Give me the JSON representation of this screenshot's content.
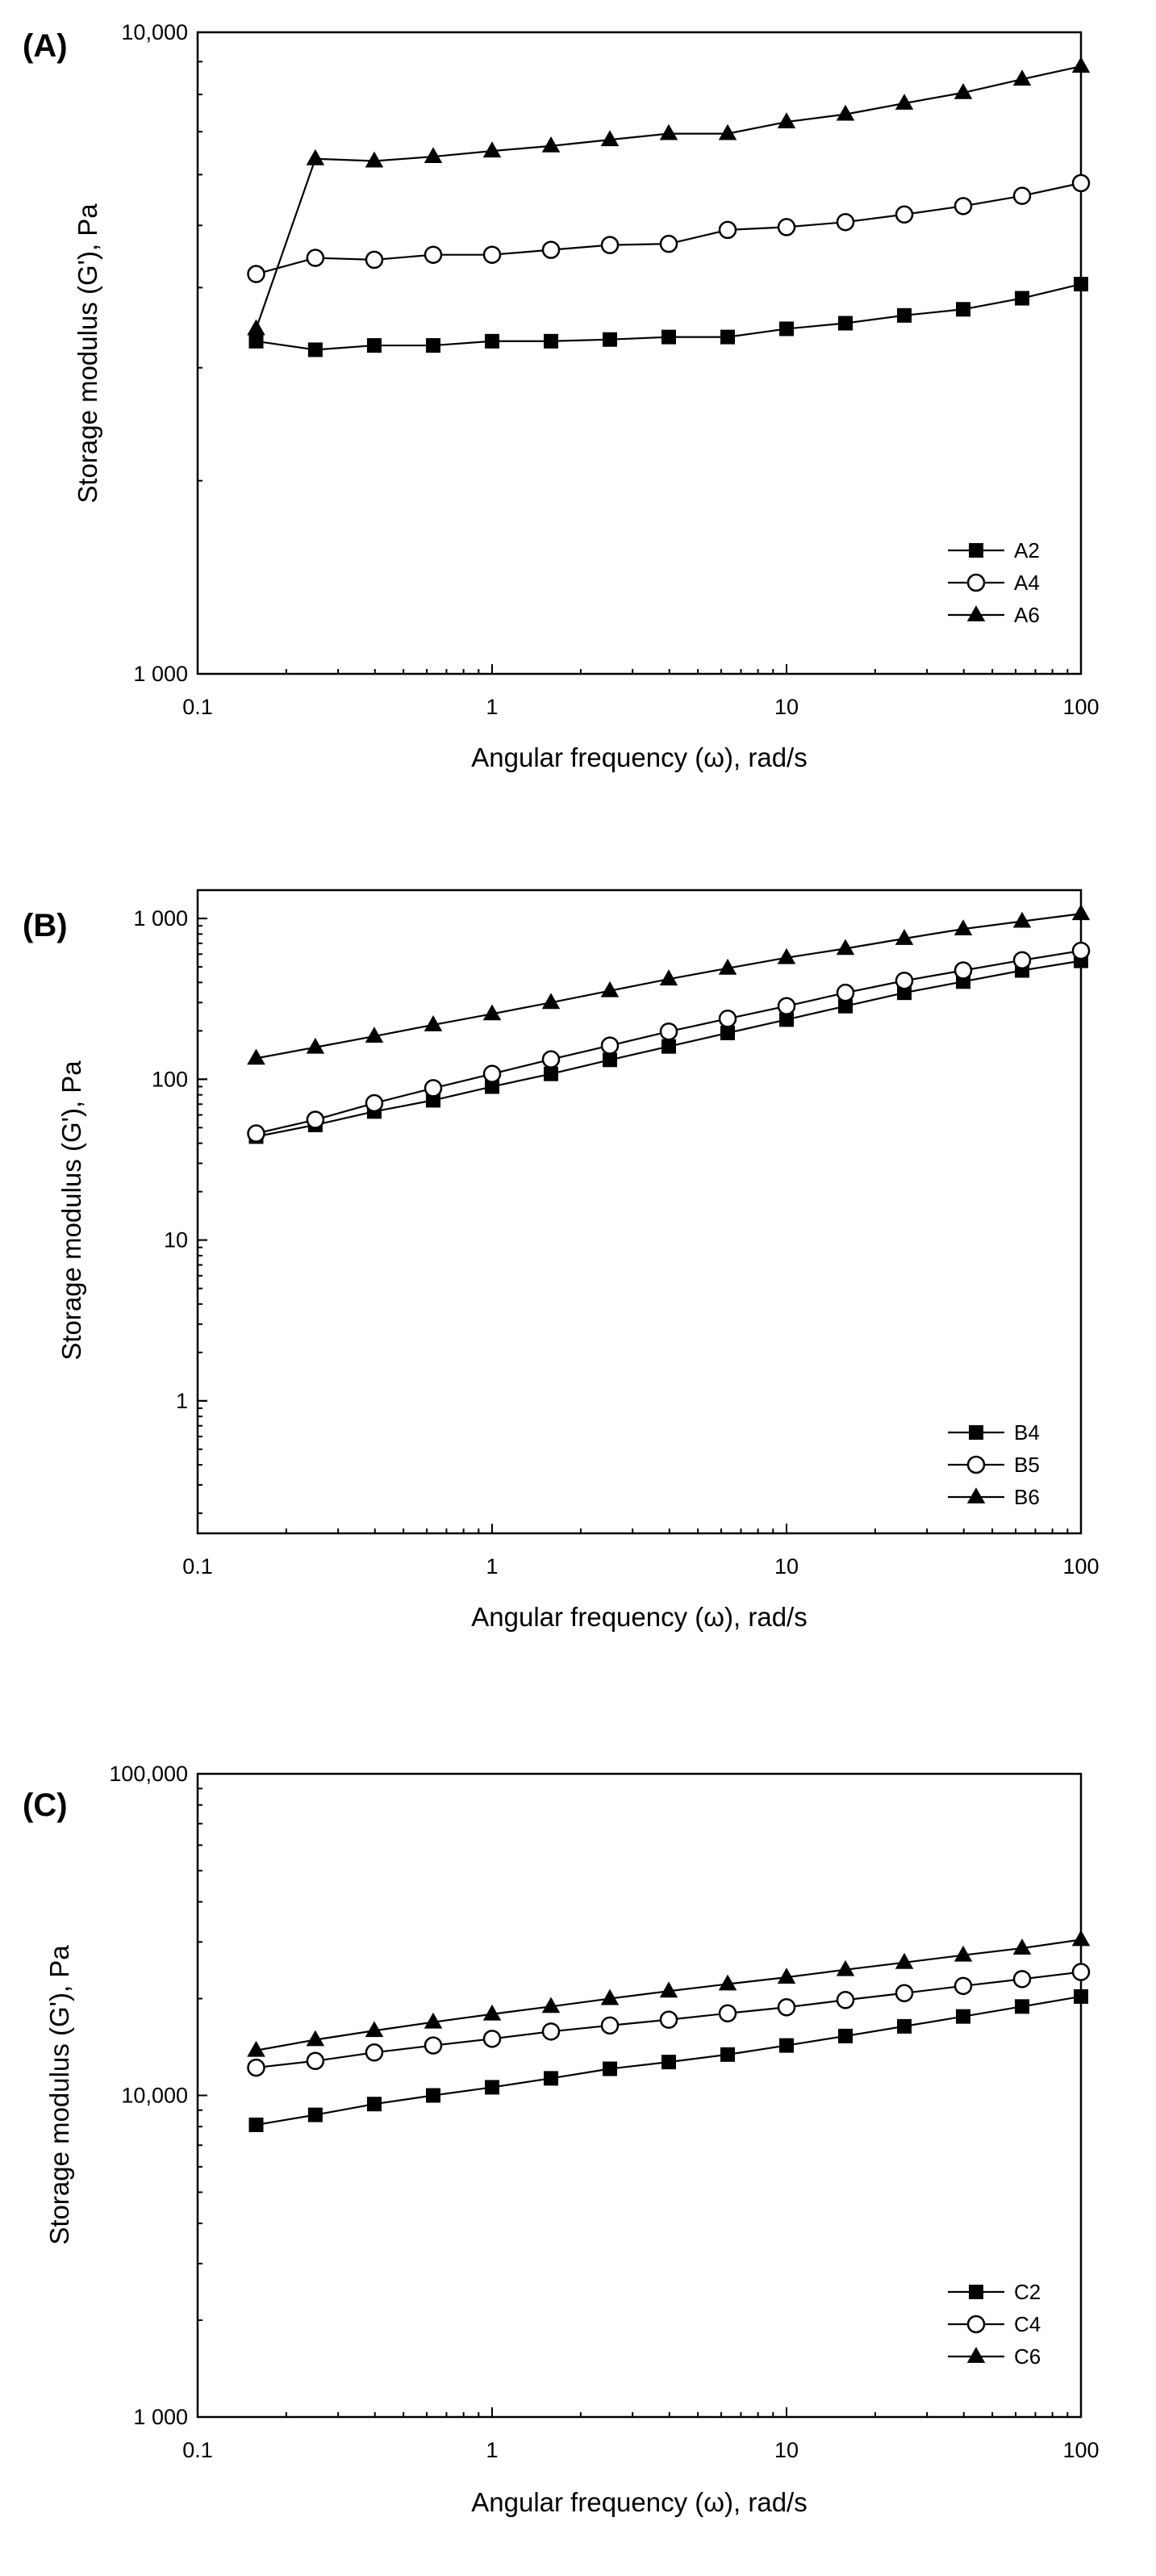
{
  "chart_data": [
    {
      "type": "line",
      "panel_label": "(A)",
      "xscale": "log",
      "yscale": "log",
      "xlim": [
        0.1,
        100
      ],
      "ylim": [
        1000,
        10000
      ],
      "xlabel": "Angular frequency (ω), rad/s",
      "ylabel": "Storage modulus (G'), Pa",
      "xticks": [
        0.1,
        1,
        10,
        100
      ],
      "xtick_labels": [
        "0.1",
        "1",
        "10",
        "100"
      ],
      "yticks": [
        1000,
        10000
      ],
      "ytick_labels": [
        "1 000",
        "10,000"
      ],
      "legend_position": "bottom-right",
      "x": [
        0.158,
        0.251,
        0.398,
        0.631,
        1.0,
        1.585,
        2.512,
        3.981,
        6.31,
        10.0,
        15.85,
        25.12,
        39.81,
        63.1,
        100.0
      ],
      "series": [
        {
          "name": "A2",
          "marker": "square-filled",
          "values": [
            3300,
            3200,
            3250,
            3250,
            3300,
            3300,
            3320,
            3350,
            3350,
            3450,
            3520,
            3620,
            3700,
            3850,
            4050
          ]
        },
        {
          "name": "A4",
          "marker": "circle-open",
          "values": [
            4200,
            4450,
            4420,
            4500,
            4500,
            4580,
            4660,
            4680,
            4920,
            4970,
            5060,
            5200,
            5360,
            5560,
            5820
          ]
        },
        {
          "name": "A6",
          "marker": "triangle-filled",
          "values": [
            3450,
            6350,
            6300,
            6400,
            6530,
            6650,
            6800,
            6950,
            6950,
            7250,
            7450,
            7750,
            8050,
            8450,
            8850
          ]
        }
      ]
    },
    {
      "type": "line",
      "panel_label": "(B)",
      "xscale": "log",
      "yscale": "log",
      "xlim": [
        0.1,
        100
      ],
      "ylim": [
        0.15,
        1500
      ],
      "xlabel": "Angular frequency (ω), rad/s",
      "ylabel": "Storage modulus (G'), Pa",
      "xticks": [
        0.1,
        1,
        10,
        100
      ],
      "xtick_labels": [
        "0.1",
        "1",
        "10",
        "100"
      ],
      "yticks": [
        1,
        10,
        100,
        1000
      ],
      "ytick_labels": [
        "1",
        "10",
        "100",
        "1 000"
      ],
      "legend_position": "bottom-right",
      "x": [
        0.158,
        0.251,
        0.398,
        0.631,
        1.0,
        1.585,
        2.512,
        3.981,
        6.31,
        10.0,
        15.85,
        25.12,
        39.81,
        63.1,
        100.0
      ],
      "series": [
        {
          "name": "B4",
          "marker": "square-filled",
          "values": [
            44,
            52,
            63,
            74,
            90,
            108,
            132,
            160,
            194,
            235,
            285,
            345,
            405,
            475,
            545
          ]
        },
        {
          "name": "B5",
          "marker": "circle-open",
          "values": [
            46,
            56,
            71,
            88,
            108,
            133,
            162,
            198,
            238,
            285,
            345,
            410,
            475,
            550,
            630
          ]
        },
        {
          "name": "B6",
          "marker": "triangle-filled",
          "values": [
            135,
            158,
            185,
            218,
            255,
            300,
            355,
            420,
            490,
            570,
            650,
            750,
            860,
            960,
            1070
          ]
        }
      ]
    },
    {
      "type": "line",
      "panel_label": "(C)",
      "xscale": "log",
      "yscale": "log",
      "xlim": [
        0.1,
        100
      ],
      "ylim": [
        1000,
        100000
      ],
      "xlabel": "Angular frequency (ω), rad/s",
      "ylabel": "Storage modulus (G'), Pa",
      "xticks": [
        0.1,
        1,
        10,
        100
      ],
      "xtick_labels": [
        "0.1",
        "1",
        "10",
        "100"
      ],
      "yticks": [
        1000,
        10000,
        100000
      ],
      "ytick_labels": [
        "1 000",
        "10,000",
        "100,000"
      ],
      "legend_position": "bottom-right",
      "x": [
        0.158,
        0.251,
        0.398,
        0.631,
        1.0,
        1.585,
        2.512,
        3.981,
        6.31,
        10.0,
        15.85,
        25.12,
        39.81,
        63.1,
        100.0
      ],
      "series": [
        {
          "name": "C2",
          "marker": "square-filled",
          "values": [
            8100,
            8700,
            9400,
            10000,
            10600,
            11300,
            12100,
            12700,
            13400,
            14300,
            15300,
            16400,
            17600,
            18900,
            20300
          ]
        },
        {
          "name": "C4",
          "marker": "circle-open",
          "values": [
            12200,
            12800,
            13600,
            14300,
            15000,
            15800,
            16500,
            17200,
            18000,
            18800,
            19800,
            20800,
            21900,
            23000,
            24200
          ]
        },
        {
          "name": "C6",
          "marker": "triangle-filled",
          "values": [
            13800,
            14900,
            15900,
            16900,
            17900,
            18900,
            20000,
            21100,
            22200,
            23300,
            24600,
            25900,
            27300,
            28700,
            30500
          ]
        }
      ]
    }
  ]
}
